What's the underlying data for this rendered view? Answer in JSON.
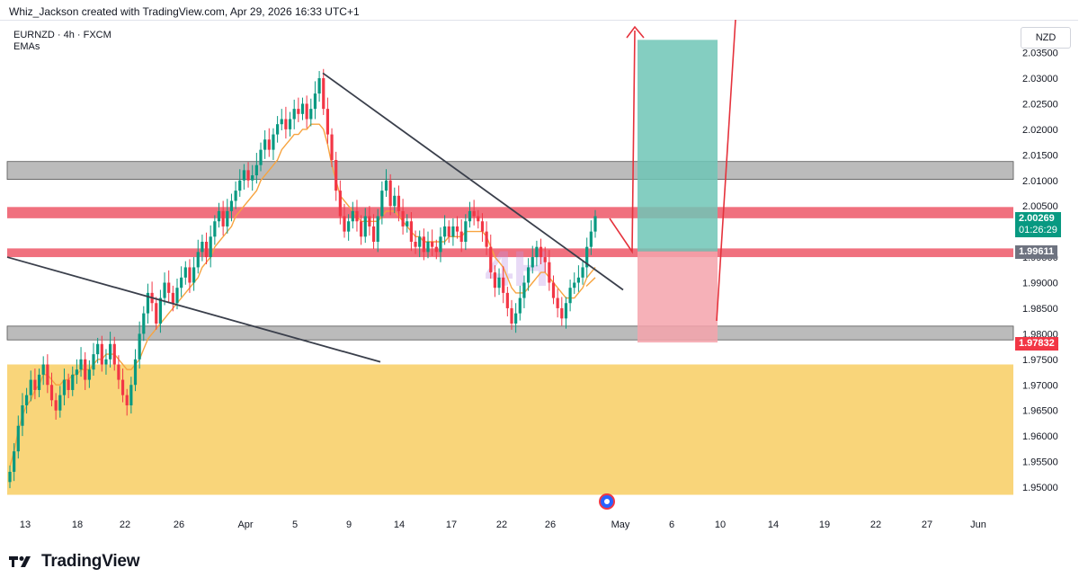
{
  "header": {
    "attribution": "Whiz_Jackson created with TradingView.com, Apr 29, 2026 16:33 UTC+1"
  },
  "symbol": {
    "line1": "EURNZD · 4h · FXCM",
    "line2": "EMAs"
  },
  "currency_label": "NZD",
  "watermark": "4H",
  "footer": {
    "brand": "TradingView"
  },
  "colors": {
    "bull": "#089981",
    "bear": "#f23645",
    "ema": "#f7a440",
    "resistance_zone": "#f0707e",
    "gray_zone": "#b7b7b7",
    "demand_zone": "#f9d57a",
    "target_box": "#6fc6b6",
    "stop_box": "#f5a3ac",
    "trendline": "#3a3f4b",
    "arrow": "#e5323c"
  },
  "price_badges": {
    "current_price": "2.00269",
    "countdown": "01:26:29",
    "entry_price": "1.99611",
    "stop_price": "1.97832"
  },
  "chart_data": {
    "type": "candlestick",
    "symbol": "EURNZD",
    "timeframe": "4h",
    "yaxis_ticks": [
      "2.03500",
      "2.03000",
      "2.02500",
      "2.02000",
      "2.01500",
      "2.01000",
      "2.00500",
      "2.00000",
      "1.99500",
      "1.99000",
      "1.98500",
      "1.98000",
      "1.97500",
      "1.97000",
      "1.96500",
      "1.96000",
      "1.95500",
      "1.95000"
    ],
    "xaxis_ticks": [
      "13",
      "18",
      "22",
      "26",
      "Apr",
      "5",
      "9",
      "14",
      "17",
      "22",
      "26",
      "May",
      "6",
      "10",
      "14",
      "19",
      "22",
      "27",
      "Jun"
    ],
    "ylim": [
      1.9475,
      2.0375
    ],
    "candles_close": [
      1.953,
      1.957,
      1.962,
      1.966,
      1.968,
      1.971,
      1.969,
      1.972,
      1.974,
      1.97,
      1.967,
      1.965,
      1.968,
      1.971,
      1.969,
      1.972,
      1.973,
      1.975,
      1.971,
      1.973,
      1.976,
      1.978,
      1.974,
      1.975,
      1.978,
      1.974,
      1.971,
      1.968,
      1.966,
      1.97,
      1.975,
      1.98,
      1.984,
      1.988,
      1.986,
      1.982,
      1.987,
      1.99,
      1.988,
      1.986,
      1.989,
      1.991,
      1.993,
      1.99,
      1.993,
      1.996,
      1.998,
      1.995,
      1.999,
      2.002,
      2.004,
      2.001,
      2.004,
      2.006,
      2.008,
      2.01,
      2.012,
      2.01,
      2.011,
      2.013,
      2.016,
      2.018,
      2.016,
      2.019,
      2.021,
      2.022,
      2.02,
      2.022,
      2.024,
      2.023,
      2.025,
      2.022,
      2.024,
      2.027,
      2.03,
      2.024,
      2.019,
      2.014,
      2.008,
      2.003,
      2.0,
      2.002,
      2.004,
      2.002,
      1.999,
      2.003,
      2.001,
      1.998,
      2.003,
      2.008,
      2.01,
      2.005,
      2.007,
      2.004,
      2.001,
      2.002,
      1.998,
      1.997,
      1.999,
      1.996,
      1.998,
      1.997,
      1.996,
      1.999,
      2.001,
      1.999,
      2.001,
      2.0,
      1.998,
      2.002,
      2.004,
      2.003,
      2.002,
      2.0,
      1.997,
      1.992,
      1.989,
      1.991,
      1.988,
      1.985,
      1.982,
      1.984,
      1.987,
      1.99,
      1.993,
      1.995,
      1.997,
      1.995,
      1.994,
      1.99,
      1.987,
      1.985,
      1.983,
      1.986,
      1.989,
      1.99,
      1.991,
      1.993,
      1.997,
      2.0,
      2.003
    ],
    "ema_line": [
      1.954,
      1.957,
      1.961,
      1.964,
      1.966,
      1.967,
      1.969,
      1.97,
      1.972,
      1.972,
      1.971,
      1.97,
      1.97,
      1.971,
      1.971,
      1.972,
      1.972,
      1.973,
      1.973,
      1.973,
      1.974,
      1.975,
      1.975,
      1.976,
      1.976,
      1.976,
      1.975,
      1.974,
      1.973,
      1.973,
      1.974,
      1.975,
      1.977,
      1.979,
      1.98,
      1.981,
      1.982,
      1.983,
      1.984,
      1.985,
      1.986,
      1.987,
      1.988,
      1.989,
      1.99,
      1.991,
      1.993,
      1.994,
      1.995,
      1.997,
      1.998,
      1.999,
      2.0,
      2.001,
      2.003,
      2.004,
      2.005,
      2.006,
      2.007,
      2.008,
      2.01,
      2.011,
      2.012,
      2.013,
      2.014,
      2.016,
      2.017,
      2.018,
      2.019,
      2.019,
      2.02,
      2.02,
      2.021,
      2.021,
      2.021,
      2.02,
      2.017,
      2.013,
      2.01,
      2.007,
      2.006,
      2.005,
      2.004,
      2.003,
      2.002,
      2.002,
      2.002,
      2.002,
      2.002,
      2.003,
      2.004,
      2.004,
      2.004,
      2.003,
      2.002,
      2.001,
      2.0,
      1.999,
      1.999,
      1.998,
      1.998,
      1.998,
      1.998,
      1.998,
      1.998,
      1.999,
      1.999,
      1.999,
      1.999,
      2.0,
      2.0,
      2.0,
      2.0,
      2.0,
      1.999,
      1.997,
      1.995,
      1.994,
      1.993,
      1.991,
      1.989,
      1.988,
      1.988,
      1.988,
      1.989,
      1.99,
      1.991,
      1.992,
      1.992,
      1.991,
      1.99,
      1.989,
      1.988,
      1.987,
      1.987,
      1.987,
      1.988,
      1.989,
      1.991,
      1.992,
      1.993
    ],
    "zones": [
      {
        "name": "upper-gray-zone",
        "from": 2.0102,
        "to": 2.0137
      },
      {
        "name": "upper-red-zone",
        "from": 2.0026,
        "to": 2.0048
      },
      {
        "name": "lower-red-zone",
        "from": 1.995,
        "to": 1.9967
      },
      {
        "name": "lower-gray-zone",
        "from": 1.9788,
        "to": 1.9815
      },
      {
        "name": "demand-zone",
        "from": 1.9485,
        "to": 1.974
      }
    ],
    "position": {
      "entry": 1.9961,
      "target": 2.0375,
      "stop": 1.9783
    },
    "trendlines": [
      {
        "name": "descending-trendline",
        "from": [
          "7 Apr",
          2.031
        ],
        "to": [
          "30 Apr",
          1.9886
        ]
      },
      {
        "name": "lower-trendline",
        "from": [
          "9 Mar",
          1.995
        ],
        "to": [
          "13 Apr",
          1.9745
        ]
      }
    ]
  }
}
